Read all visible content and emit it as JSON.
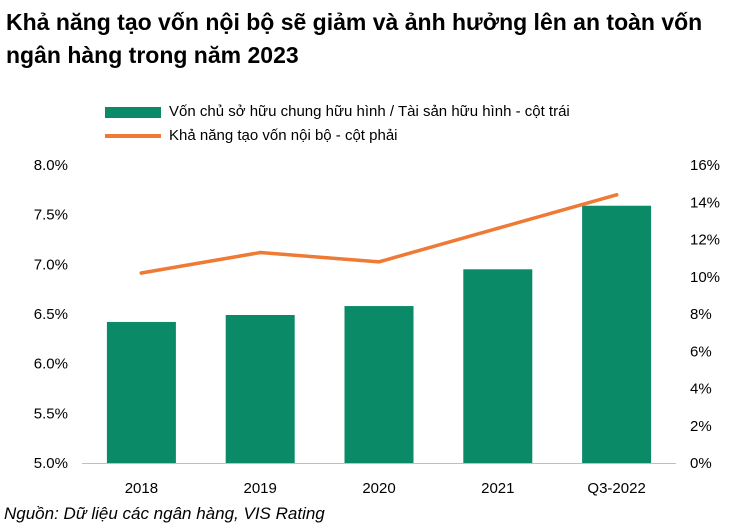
{
  "chart_data": {
    "type": "bar",
    "title": "Khả năng tạo vốn nội bộ sẽ giảm và ảnh hưởng lên an toàn vốn ngân hàng trong năm 2023",
    "categories": [
      "2018",
      "2019",
      "2020",
      "2021",
      "Q3-2022"
    ],
    "series": [
      {
        "name": "Vốn chủ sở hữu chung hữu hình / Tài sản hữu hình - cột trái",
        "type": "bar",
        "axis": "left",
        "color": "#0b8a68",
        "values": [
          6.42,
          6.49,
          6.58,
          6.95,
          7.59
        ]
      },
      {
        "name": "Khả năng tạo vốn nội bộ - cột phải",
        "type": "line",
        "axis": "right",
        "color": "#ee7a35",
        "values": [
          10.2,
          11.3,
          10.8,
          12.6,
          14.4
        ]
      }
    ],
    "y_left": {
      "ylim": [
        5.0,
        8.0
      ],
      "ticks": [
        5.0,
        5.5,
        6.0,
        6.5,
        7.0,
        7.5,
        8.0
      ],
      "tick_labels": [
        "5.0%",
        "5.5%",
        "6.0%",
        "6.5%",
        "7.0%",
        "7.5%",
        "8.0%"
      ]
    },
    "y_right": {
      "ylim": [
        0,
        16
      ],
      "ticks": [
        0,
        2,
        4,
        6,
        8,
        10,
        12,
        14,
        16
      ],
      "tick_labels": [
        "0%",
        "2%",
        "4%",
        "6%",
        "8%",
        "10%",
        "12%",
        "14%",
        "16%"
      ]
    },
    "grid": false,
    "legend_position": "top"
  },
  "source": "Nguồn: Dữ liệu các ngân hàng, VIS Rating"
}
